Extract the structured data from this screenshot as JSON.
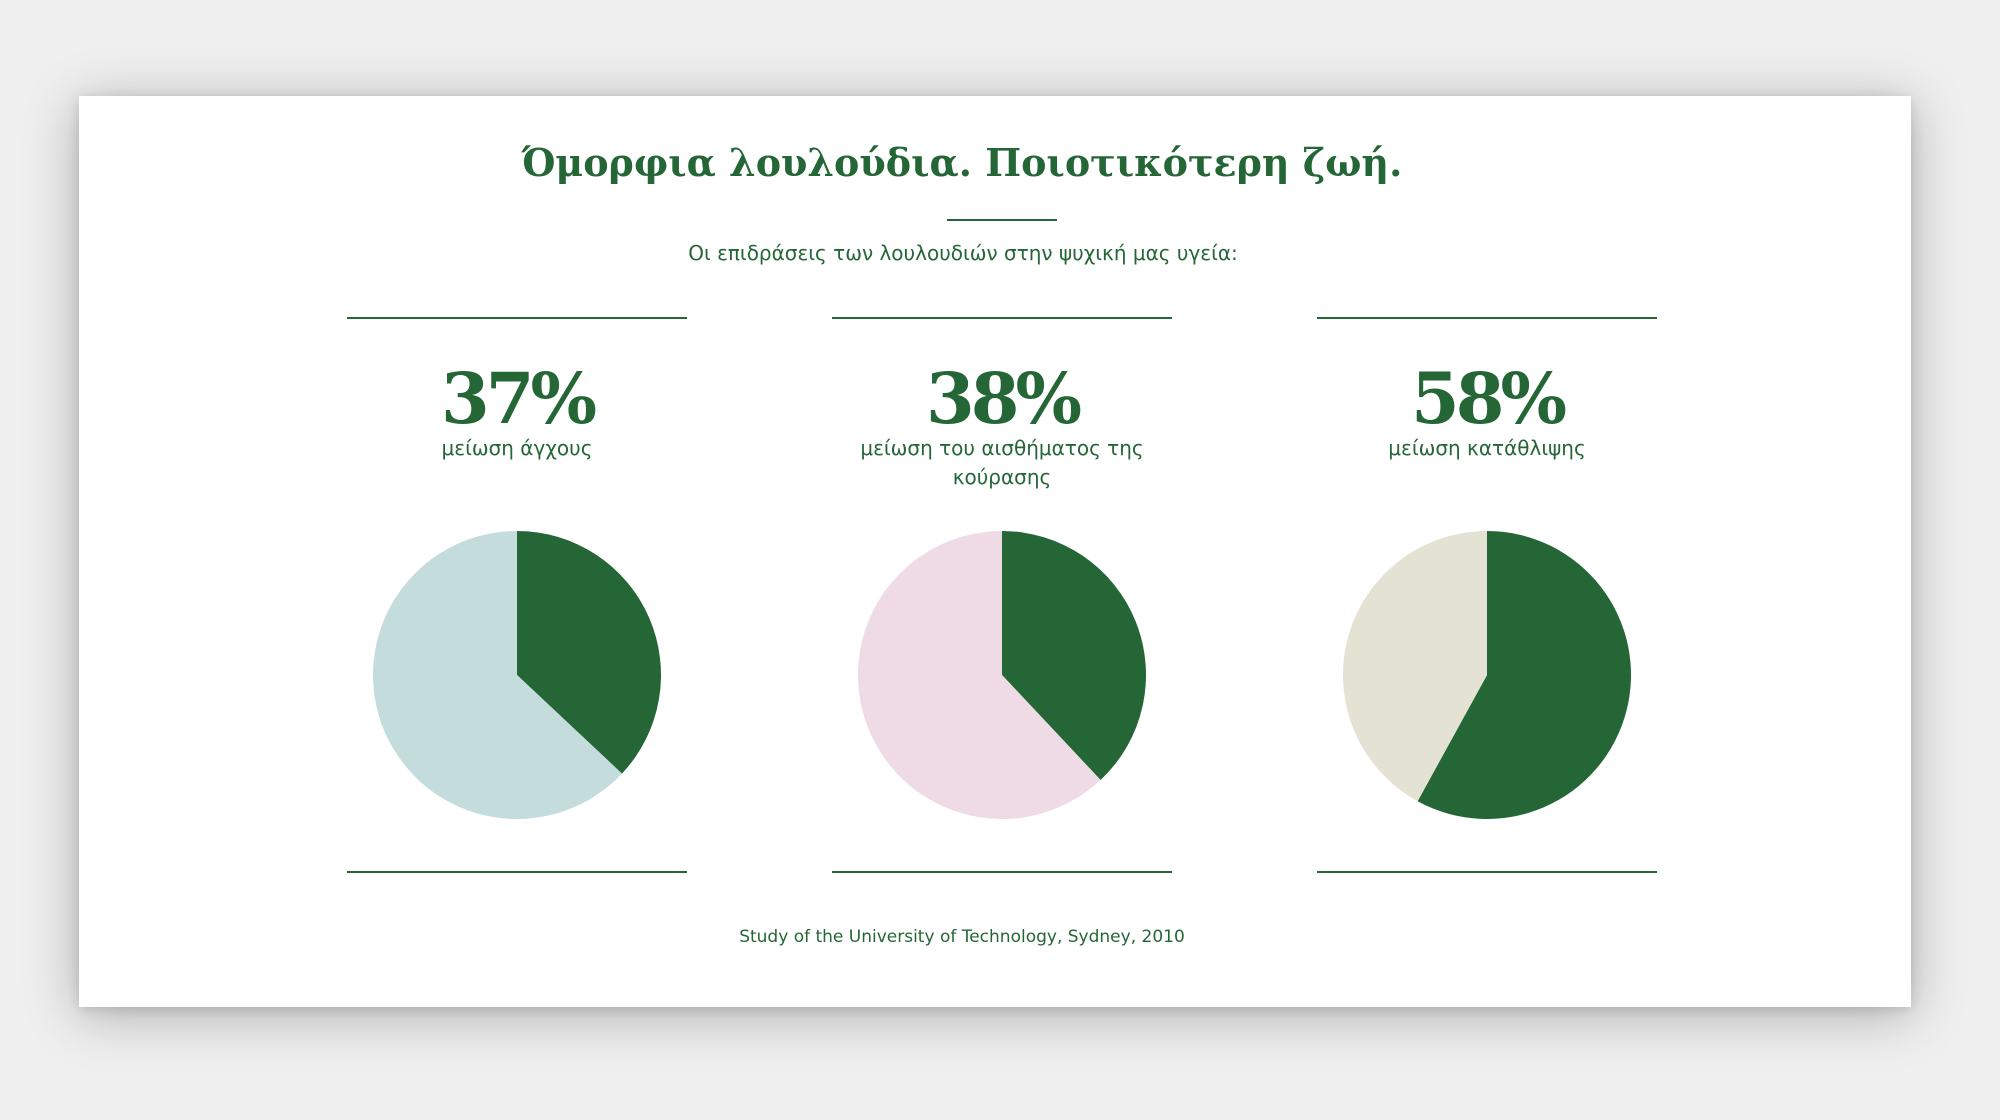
{
  "title": "Όμορφια λουλούδια. Ποιοτικότερη ζωή.",
  "subtitle": "Οι επιδράσεις των λουλουδιών στην ψυχική μας υγεία:",
  "footer": "Study of the University of Technology, Sydney, 2010",
  "colors": {
    "accent": "#256637",
    "background": "#efefef",
    "card": "#ffffff"
  },
  "chart_data": [
    {
      "type": "pie",
      "title": "37%",
      "caption": "μείωση άγχους",
      "values": [
        37,
        63
      ],
      "colors": [
        "#256637",
        "#c4dcdc"
      ]
    },
    {
      "type": "pie",
      "title": "38%",
      "caption": "μείωση του αισθήματος της κούρασης",
      "values": [
        38,
        62
      ],
      "colors": [
        "#256637",
        "#efdbe5"
      ]
    },
    {
      "type": "pie",
      "title": "58%",
      "caption": "μείωση κατάθλιψης",
      "values": [
        58,
        42
      ],
      "colors": [
        "#256637",
        "#e4e2d3"
      ]
    }
  ]
}
